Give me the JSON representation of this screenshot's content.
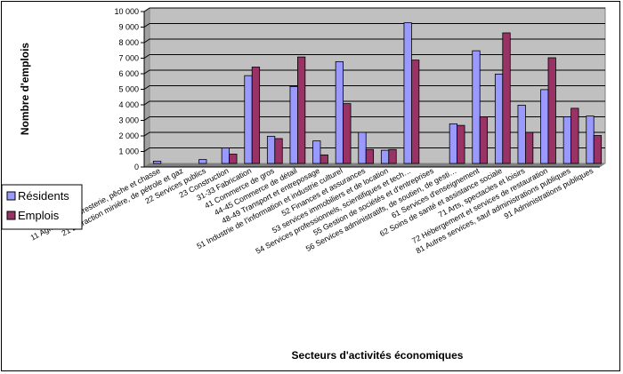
{
  "chart_data": {
    "type": "bar",
    "title": "",
    "xlabel": "Secteurs d'activités économiques",
    "ylabel": "Nombre d'emplois",
    "ylim": [
      0,
      10000
    ],
    "yticks": [
      0,
      1000,
      2000,
      3000,
      4000,
      5000,
      6000,
      7000,
      8000,
      9000,
      10000
    ],
    "ytick_labels": [
      "0",
      "1 000",
      "2 000",
      "3 000",
      "4 000",
      "5 000",
      "6 000",
      "7 000",
      "8 000",
      "9 000",
      "10 000"
    ],
    "grid": "horizontal",
    "legend_position": "left",
    "categories": [
      "11 Agriculture, foresterie, pêche et chasse",
      "21 Extraction minière, de pétrole et gaz",
      "22 Services publics",
      "23 Construction",
      "31-33 Fabrication",
      "41 Commerce de gros",
      "44-45 Commerce de détail",
      "48-49 Transport et entreposage",
      "51 Industrie de l'information et industrie culturel",
      "52 Finances et assurances",
      "53 services immobiliers et de location",
      "54 Services professionnels, scientifiques et tech…",
      "55 Gestion de sociétés et d'entreprises",
      "56 Services administratifs, de soutien, de gesti…",
      "61 Services d'enseignement",
      "62 Soins de santé et assistance sociale",
      "71 Arts, spectacles et loisirs",
      "72 Hébergement et services de restauration",
      "81 Autres services, sauf administrations publiques",
      "91 Administrations publiques"
    ],
    "series": [
      {
        "name": "Résidents",
        "color": "#9999ff",
        "values": [
          150,
          0,
          250,
          1000,
          5650,
          1750,
          4950,
          1450,
          6550,
          2000,
          850,
          9050,
          0,
          2550,
          7250,
          5750,
          3750,
          4750,
          3000,
          3050
        ]
      },
      {
        "name": "Emplois",
        "color": "#993366",
        "values": [
          0,
          0,
          0,
          600,
          6200,
          1600,
          6850,
          550,
          3850,
          900,
          900,
          6650,
          0,
          2450,
          3000,
          8400,
          2000,
          6800,
          3550,
          1800
        ]
      }
    ]
  },
  "colors": {
    "plot_background": "#c0c0c0",
    "gridline": "#000000"
  }
}
